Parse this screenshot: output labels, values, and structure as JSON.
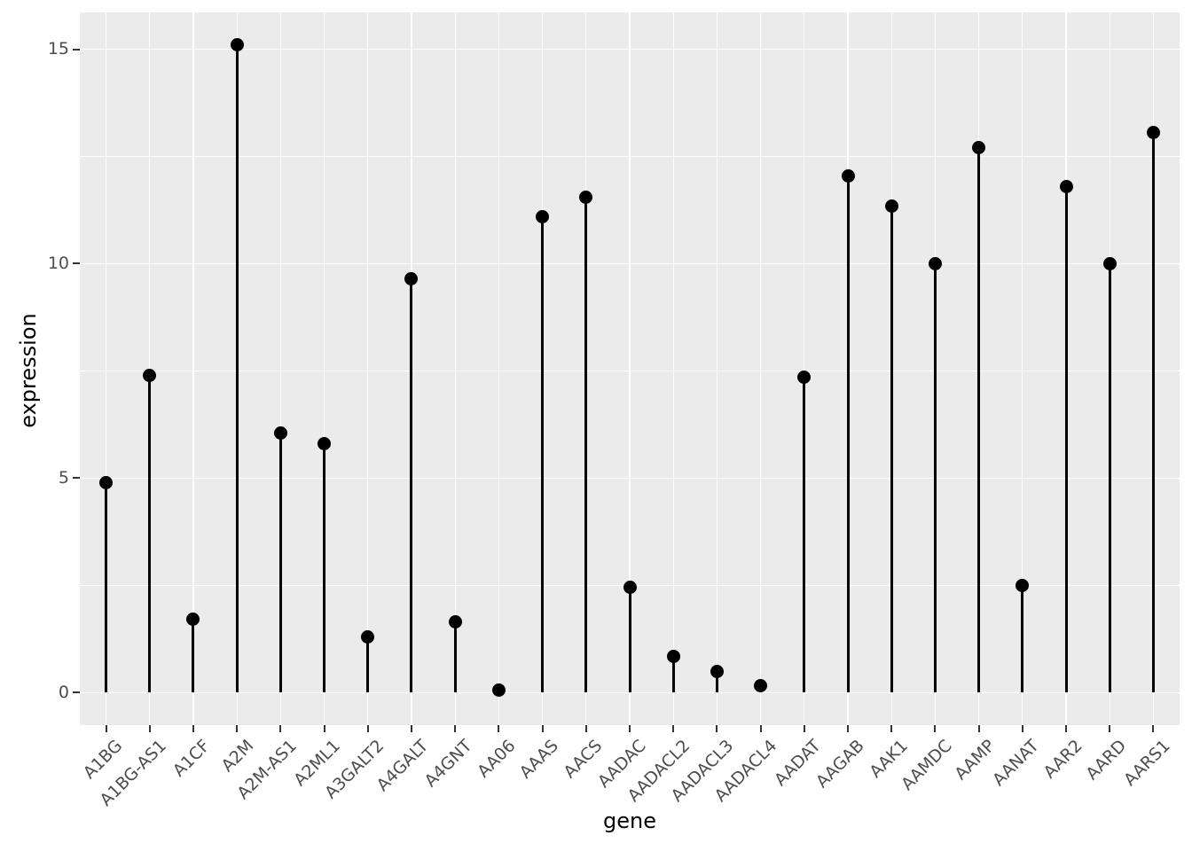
{
  "chart_data": {
    "type": "lollipop",
    "title": "",
    "xlabel": "gene",
    "ylabel": "expression",
    "categories": [
      "A1BG",
      "A1BG-AS1",
      "A1CF",
      "A2M",
      "A2M-AS1",
      "A2ML1",
      "A3GALT2",
      "A4GALT",
      "A4GNT",
      "AA06",
      "AAAS",
      "AACS",
      "AADAC",
      "AADACL2",
      "AADACL3",
      "AADACL4",
      "AADAT",
      "AAGAB",
      "AAK1",
      "AAMDC",
      "AAMP",
      "AANAT",
      "AAR2",
      "AARD",
      "AARS1"
    ],
    "values": [
      4.9,
      7.4,
      1.7,
      15.1,
      6.05,
      5.8,
      1.3,
      9.65,
      1.65,
      0.05,
      11.1,
      11.55,
      2.45,
      0.85,
      0.5,
      0.15,
      7.35,
      12.05,
      11.35,
      10.0,
      12.7,
      2.5,
      11.8,
      10.0,
      13.05
    ],
    "y_major_ticks": [
      0,
      5,
      10,
      15
    ],
    "y_minor_ticks": [
      2.5,
      7.5,
      12.5
    ],
    "ylim": [
      -0.76,
      15.86
    ],
    "baseline": 0,
    "grid": "on",
    "legend": "none",
    "colors": {
      "panel_bg": "#EBEBEB",
      "grid": "#FFFFFF",
      "stem": "#000000",
      "point": "#000000",
      "tick_label": "#4D4D4D",
      "tick_mark": "#333333",
      "axis_title": "#000000",
      "outer_bg": "#FFFFFF"
    }
  }
}
